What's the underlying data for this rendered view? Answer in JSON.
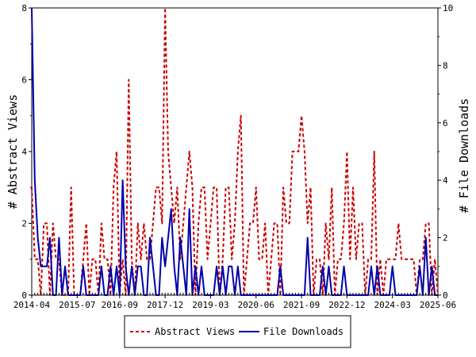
{
  "chart_data": {
    "type": "line",
    "title": "",
    "xlabel": "",
    "ylabel_left": "# Abstract Views",
    "ylabel_right": "# File Downloads",
    "y_left_range": [
      0,
      8
    ],
    "y_right_range": [
      0,
      10
    ],
    "y_left_ticks": [
      "0",
      "2",
      "4",
      "6",
      "8"
    ],
    "y_right_ticks": [
      "0",
      "2",
      "4",
      "6",
      "8",
      "10"
    ],
    "x_range": [
      0,
      134
    ],
    "x_ticks": [
      {
        "label": "2014-04",
        "x": 0
      },
      {
        "label": "2015-07",
        "x": 15
      },
      {
        "label": "2016-09",
        "x": 29
      },
      {
        "label": "2017-12",
        "x": 44
      },
      {
        "label": "2019-03",
        "x": 59
      },
      {
        "label": "2020-06",
        "x": 74
      },
      {
        "label": "2021-09",
        "x": 89
      },
      {
        "label": "2022-12",
        "x": 104
      },
      {
        "label": "2024-03",
        "x": 119
      },
      {
        "label": "2025-06",
        "x": 134
      }
    ],
    "grid": false,
    "legend_position": "bottom",
    "series": [
      {
        "name": "Abstract Views",
        "axis": "left",
        "color": "#cc0000",
        "style": "dashed",
        "values": [
          3,
          1,
          1,
          0,
          2,
          2,
          0,
          2,
          1,
          1,
          0,
          0,
          0,
          3,
          0,
          0,
          0,
          1,
          2,
          0,
          1,
          1,
          0,
          2,
          1,
          1,
          0,
          3,
          4,
          0,
          1,
          0,
          6,
          1,
          0,
          2,
          1,
          2,
          1,
          1,
          2,
          3,
          3,
          2,
          8,
          4,
          3,
          2,
          3,
          1,
          2,
          3,
          4,
          3,
          0,
          2,
          3,
          3,
          1,
          2,
          3,
          3,
          0,
          1,
          3,
          3,
          1,
          2,
          4,
          5,
          0,
          1,
          2,
          2,
          3,
          1,
          1,
          2,
          0,
          1,
          2,
          2,
          0,
          3,
          2,
          2,
          4,
          4,
          4,
          5,
          4,
          2,
          3,
          0,
          1,
          1,
          0,
          2,
          1,
          3,
          0,
          1,
          1,
          2,
          4,
          1,
          3,
          1,
          2,
          2,
          0,
          1,
          1,
          4,
          0,
          1,
          0,
          1,
          1,
          1,
          1,
          2,
          1,
          1,
          1,
          1,
          1,
          0,
          1,
          1,
          2,
          2,
          0,
          1,
          0
        ]
      },
      {
        "name": "File Downloads",
        "axis": "right",
        "color": "#0000aa",
        "style": "solid",
        "values": [
          10,
          4,
          2,
          1,
          1,
          1,
          2,
          0,
          0,
          2,
          0,
          1,
          0,
          0,
          0,
          0,
          0,
          1,
          0,
          0,
          0,
          0,
          0,
          1,
          0,
          0,
          1,
          0,
          1,
          0,
          4,
          1,
          0,
          1,
          0,
          1,
          1,
          0,
          0,
          2,
          1,
          0,
          0,
          2,
          1,
          2,
          3,
          1,
          0,
          2,
          1,
          0,
          3,
          0,
          1,
          0,
          1,
          0,
          0,
          0,
          0,
          1,
          0,
          1,
          0,
          1,
          1,
          0,
          1,
          0,
          0,
          0,
          0,
          0,
          0,
          0,
          0,
          0,
          0,
          0,
          0,
          0,
          1,
          0,
          0,
          0,
          0,
          0,
          0,
          0,
          0,
          2,
          0,
          0,
          0,
          0,
          1,
          0,
          1,
          0,
          0,
          0,
          0,
          1,
          0,
          0,
          0,
          0,
          0,
          0,
          0,
          0,
          1,
          0,
          1,
          0,
          0,
          0,
          0,
          1,
          0,
          0,
          0,
          0,
          0,
          0,
          0,
          0,
          1,
          0,
          2,
          0,
          1,
          0,
          0
        ]
      }
    ]
  }
}
